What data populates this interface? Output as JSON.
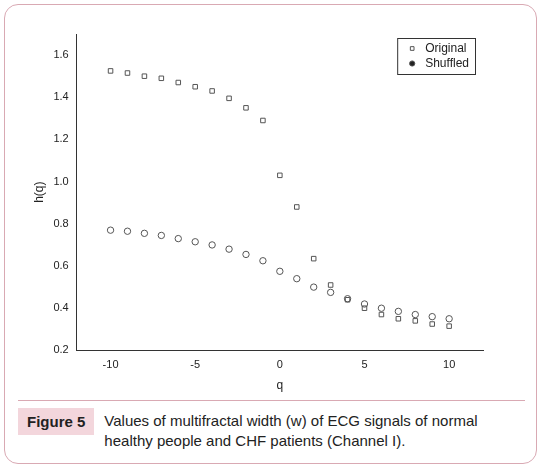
{
  "chart_data": {
    "type": "scatter",
    "x_label": "q",
    "y_label": "h(q)",
    "xlim": [
      -12,
      12
    ],
    "xticks": [
      -10,
      -5,
      0,
      5,
      10
    ],
    "ylim": [
      0.2,
      1.7
    ],
    "yticks": [
      0.2,
      0.4,
      0.6,
      0.8,
      {
        "value": 1,
        "label": "1.0"
      },
      1.2,
      1.4,
      1.6
    ],
    "x": [
      -10,
      -9,
      -8,
      -7,
      -6,
      -5,
      -4,
      -3,
      -2,
      -1,
      0,
      1,
      2,
      3,
      4,
      5,
      6,
      7,
      8,
      9,
      10
    ],
    "series": [
      {
        "name": "Original",
        "color": "#555555",
        "marker": "square",
        "values": [
          1.525,
          1.515,
          1.5,
          1.49,
          1.47,
          1.45,
          1.43,
          1.395,
          1.35,
          1.29,
          1.03,
          0.88,
          0.635,
          0.51,
          0.44,
          0.4,
          0.37,
          0.35,
          0.34,
          0.325,
          0.315
        ]
      },
      {
        "name": "Shuffled",
        "color": "#555555",
        "marker": "circle",
        "values": [
          0.77,
          0.765,
          0.755,
          0.745,
          0.73,
          0.715,
          0.7,
          0.68,
          0.655,
          0.625,
          0.575,
          0.54,
          0.5,
          0.475,
          0.445,
          0.42,
          0.4,
          0.385,
          0.37,
          0.36,
          0.35
        ]
      }
    ],
    "legend": "upper right",
    "grid": false
  },
  "caption": {
    "label": "Figure 5",
    "text": "Values of multifractal width (w) of ECG signals of normal healthy people and CHF patients (Channel I)."
  }
}
